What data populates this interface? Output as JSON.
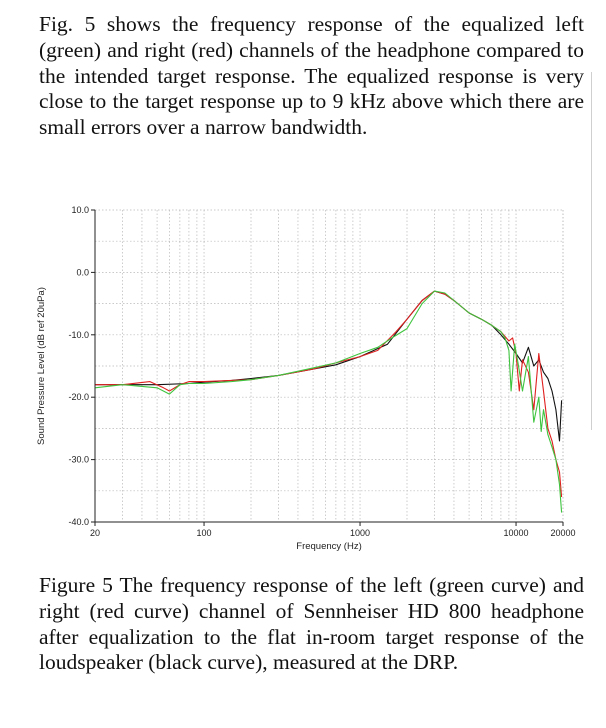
{
  "paragraph": "Fig. 5 shows the frequency response of the equalized left (green) and right (red) channels of the headphone compared to the intended target response. The equalized response is very close to the target response up to 9 kHz above which there are small errors over a narrow bandwidth.",
  "caption": "Figure 5 The frequency response of the left (green curve) and right (red curve) channel of Sennheiser HD 800 headphone after equalization to the flat in-room target response of the loudspeaker (black curve), measured at the DRP.",
  "colors": {
    "left": "#3ec43e",
    "right": "#e02020",
    "target": "#111111",
    "grid": "#b8b8b8"
  },
  "chart_data": {
    "type": "line",
    "title": "",
    "xlabel": "Frequency (Hz)",
    "ylabel": "Sound Pressure Level (dB ref 20uPa)",
    "xscale": "log",
    "xlim": [
      20,
      20000
    ],
    "ylim": [
      -40,
      10
    ],
    "x_ticks": [
      20,
      100,
      1000,
      10000,
      20000
    ],
    "x_tick_labels": [
      "20",
      "100",
      "1000",
      "10000",
      "20000"
    ],
    "y_ticks": [
      -40,
      -30,
      -20,
      -10,
      0,
      10
    ],
    "y_tick_labels": [
      "-40.0",
      "-30.0",
      "-20.0",
      "-10.0",
      "0.0",
      "10.0"
    ],
    "grid": true,
    "series": [
      {
        "key": "target",
        "color": "#111111",
        "x": [
          20,
          30,
          50,
          80,
          100,
          150,
          200,
          300,
          500,
          700,
          1000,
          1500,
          2000,
          2500,
          3000,
          3500,
          4000,
          5000,
          6000,
          7000,
          8000,
          9000,
          10000,
          11000,
          12000,
          13000,
          14000,
          15000,
          16000,
          17000,
          18000,
          19000,
          19600
        ],
        "y": [
          -18.0,
          -18.0,
          -18.0,
          -17.8,
          -17.6,
          -17.3,
          -17.0,
          -16.5,
          -15.5,
          -14.8,
          -13.5,
          -11.5,
          -7.5,
          -4.5,
          -3.0,
          -3.5,
          -4.5,
          -6.5,
          -7.5,
          -8.5,
          -10.0,
          -11.5,
          -13.0,
          -14.5,
          -12.0,
          -15.0,
          -14.0,
          -16.0,
          -17.0,
          -19.0,
          -22.0,
          -27.0,
          -20.5
        ]
      },
      {
        "key": "right",
        "color": "#e02020",
        "x": [
          20,
          30,
          45,
          55,
          60,
          70,
          80,
          100,
          150,
          200,
          300,
          500,
          700,
          1000,
          1300,
          1700,
          2000,
          2500,
          3000,
          3500,
          4000,
          5000,
          6000,
          7000,
          8000,
          9000,
          9500,
          10000,
          10500,
          11000,
          12000,
          13000,
          14000,
          15000,
          16000,
          17000,
          18000,
          19000,
          19600
        ],
        "y": [
          -18.0,
          -18.0,
          -17.5,
          -18.5,
          -19.0,
          -18.0,
          -17.5,
          -17.5,
          -17.3,
          -17.2,
          -16.5,
          -15.5,
          -14.5,
          -13.5,
          -12.5,
          -9.5,
          -7.5,
          -4.5,
          -3.0,
          -3.5,
          -4.5,
          -6.5,
          -7.5,
          -8.5,
          -9.5,
          -11.0,
          -10.5,
          -13.0,
          -19.0,
          -14.0,
          -16.0,
          -22.0,
          -13.0,
          -19.0,
          -25.0,
          -27.0,
          -30.0,
          -32.0,
          -36.0
        ]
      },
      {
        "key": "left",
        "color": "#3ec43e",
        "x": [
          20,
          30,
          50,
          60,
          70,
          80,
          100,
          150,
          200,
          300,
          500,
          700,
          1000,
          1300,
          1600,
          2000,
          2500,
          3000,
          3500,
          4000,
          5000,
          6000,
          7000,
          8000,
          8500,
          9000,
          9300,
          9800,
          10300,
          11000,
          12000,
          13000,
          14000,
          14500,
          15000,
          16000,
          17000,
          18000,
          19000,
          19600
        ],
        "y": [
          -18.5,
          -18.0,
          -18.5,
          -19.5,
          -18.0,
          -17.8,
          -17.8,
          -17.5,
          -17.2,
          -16.5,
          -15.3,
          -14.5,
          -13.0,
          -12.0,
          -10.5,
          -9.0,
          -5.0,
          -3.0,
          -3.3,
          -4.5,
          -6.5,
          -7.5,
          -8.5,
          -9.5,
          -10.5,
          -12.5,
          -19.0,
          -11.5,
          -14.5,
          -19.0,
          -13.5,
          -24.0,
          -20.0,
          -25.5,
          -22.0,
          -26.0,
          -28.0,
          -30.0,
          -34.0,
          -38.5
        ]
      }
    ]
  }
}
